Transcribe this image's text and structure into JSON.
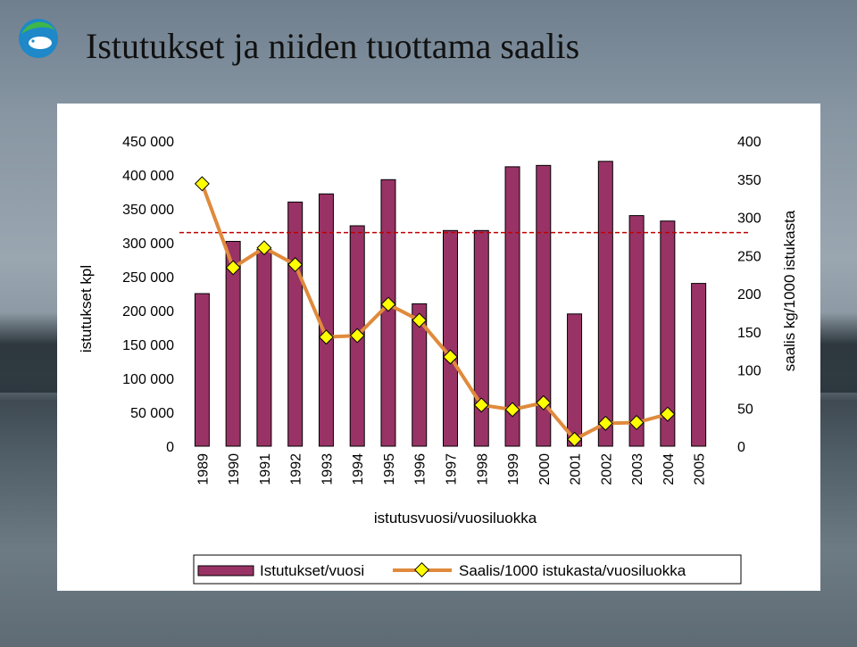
{
  "page": {
    "title": "Istutukset ja niiden tuottama saalis"
  },
  "chart_data": {
    "type": "bar",
    "categories": [
      "1989",
      "1990",
      "1991",
      "1992",
      "1993",
      "1994",
      "1995",
      "1996",
      "1997",
      "1998",
      "1999",
      "2000",
      "2001",
      "2002",
      "2003",
      "2004",
      "2005"
    ],
    "series": [
      {
        "name": "Istutukset/vuosi",
        "type": "bar",
        "axis": "left",
        "color": "#993366",
        "values": [
          225000,
          302000,
          290000,
          360000,
          372000,
          325000,
          393000,
          210000,
          318000,
          318000,
          412000,
          414000,
          195000,
          420000,
          340000,
          332000,
          240000
        ]
      },
      {
        "name": "Saalis/1000 istukasta/vuosiluokka",
        "type": "line",
        "axis": "right",
        "color": "#E08A3C",
        "marker_color": "#FFFF00",
        "values": [
          344,
          234,
          260,
          238,
          143,
          145,
          186,
          165,
          117,
          54,
          48,
          57,
          9,
          30,
          31,
          42,
          null
        ]
      }
    ],
    "xlabel": "istutusvuosi/vuosiluokka",
    "ylabel": "istutukset kpl",
    "y2label": "saalis kg/1000 istukasta",
    "ylim": [
      0,
      450000
    ],
    "y2lim": [
      0,
      400
    ],
    "yticks": [
      "0",
      "50 000",
      "100 000",
      "150 000",
      "200 000",
      "250 000",
      "300 000",
      "350 000",
      "400 000",
      "450 000"
    ],
    "y2ticks": [
      "0",
      "50",
      "100",
      "150",
      "200",
      "250",
      "300",
      "350",
      "400"
    ],
    "reference_line": {
      "axis": "right",
      "value": 280,
      "color": "#C00000",
      "style": "dashed"
    },
    "grid": false,
    "legend": "bottom"
  }
}
